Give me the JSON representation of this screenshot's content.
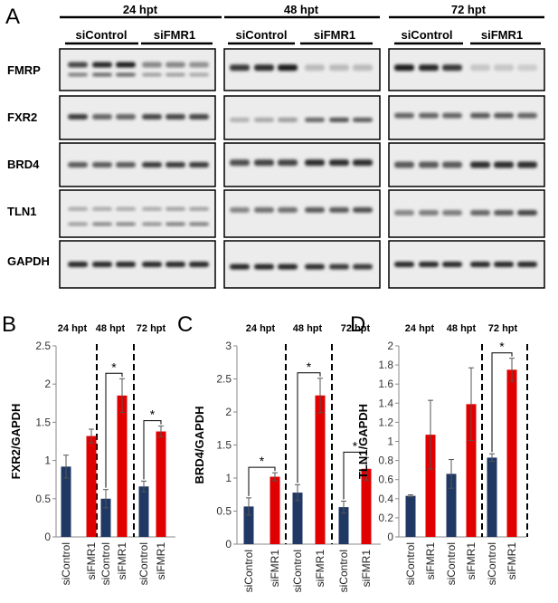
{
  "panel_a": {
    "letter": "A",
    "timepoints": [
      "24 hpt",
      "48 hpt",
      "72 hpt"
    ],
    "groups": [
      "siControl",
      "siFMR1"
    ],
    "proteins": [
      "FMRP",
      "FXR2",
      "BRD4",
      "TLN1",
      "GAPDH"
    ]
  },
  "chart_data": [
    {
      "type": "bar",
      "letter": "B",
      "ylabel": "FXR2/GAPDH",
      "ylim": [
        0,
        2.5
      ],
      "ytick_step": 0.5,
      "ytick_labels": [
        "0",
        "0.5",
        "1",
        "1.5",
        "2",
        "2.5"
      ],
      "timepoints": [
        "24 hpt",
        "48 hpt",
        "72 hpt"
      ],
      "categories": [
        "siControl",
        "siFMR1",
        "siControl",
        "siFMR1",
        "siControl",
        "siFMR1"
      ],
      "values": [
        0.92,
        1.32,
        0.5,
        1.85,
        0.66,
        1.38
      ],
      "errors": [
        0.15,
        0.09,
        0.12,
        0.22,
        0.07,
        0.07
      ],
      "colors": [
        "#1f3864",
        "#e00000",
        "#1f3864",
        "#e00000",
        "#1f3864",
        "#e00000"
      ],
      "significance": [
        {
          "pair": [
            2,
            3
          ],
          "label": "*"
        },
        {
          "pair": [
            4,
            5
          ],
          "label": "*"
        }
      ]
    },
    {
      "type": "bar",
      "letter": "C",
      "ylabel": "BRD4/GAPDH",
      "ylim": [
        0,
        3
      ],
      "ytick_step": 0.5,
      "ytick_labels": [
        "0",
        "0.5",
        "1",
        "1.5",
        "2",
        "2.5",
        "3"
      ],
      "timepoints": [
        "24 hpt",
        "48 hpt",
        "72 hpt"
      ],
      "categories": [
        "siControl",
        "siFMR1",
        "siControl",
        "siFMR1",
        "siControl",
        "siFMR1"
      ],
      "values": [
        0.57,
        1.02,
        0.78,
        2.25,
        0.56,
        1.14
      ],
      "errors": [
        0.13,
        0.06,
        0.12,
        0.26,
        0.09,
        0.17
      ],
      "colors": [
        "#1f3864",
        "#e00000",
        "#1f3864",
        "#e00000",
        "#1f3864",
        "#e00000"
      ],
      "significance": [
        {
          "pair": [
            0,
            1
          ],
          "label": "*"
        },
        {
          "pair": [
            2,
            3
          ],
          "label": "*"
        },
        {
          "pair": [
            4,
            5
          ],
          "label": "*"
        }
      ]
    },
    {
      "type": "bar",
      "letter": "D",
      "ylabel": "TLN1/GAPDH",
      "ylim": [
        0,
        2
      ],
      "ytick_step": 0.2,
      "ytick_labels": [
        "0",
        "0.2",
        "0.4",
        "0.6",
        "0.8",
        "1",
        "1.2",
        "1.4",
        "1.6",
        "1.8",
        "2"
      ],
      "timepoints": [
        "24 hpt",
        "48 hpt",
        "72 hpt"
      ],
      "categories": [
        "siControl",
        "siFMR1",
        "siControl",
        "siFMR1",
        "siControl",
        "siFMR1"
      ],
      "values": [
        0.43,
        1.07,
        0.66,
        1.39,
        0.83,
        1.75
      ],
      "errors": [
        0.01,
        0.36,
        0.15,
        0.38,
        0.04,
        0.12
      ],
      "colors": [
        "#1f3864",
        "#e00000",
        "#1f3864",
        "#e00000",
        "#1f3864",
        "#e00000"
      ],
      "significance": [
        {
          "pair": [
            4,
            5
          ],
          "label": "*"
        }
      ]
    }
  ]
}
